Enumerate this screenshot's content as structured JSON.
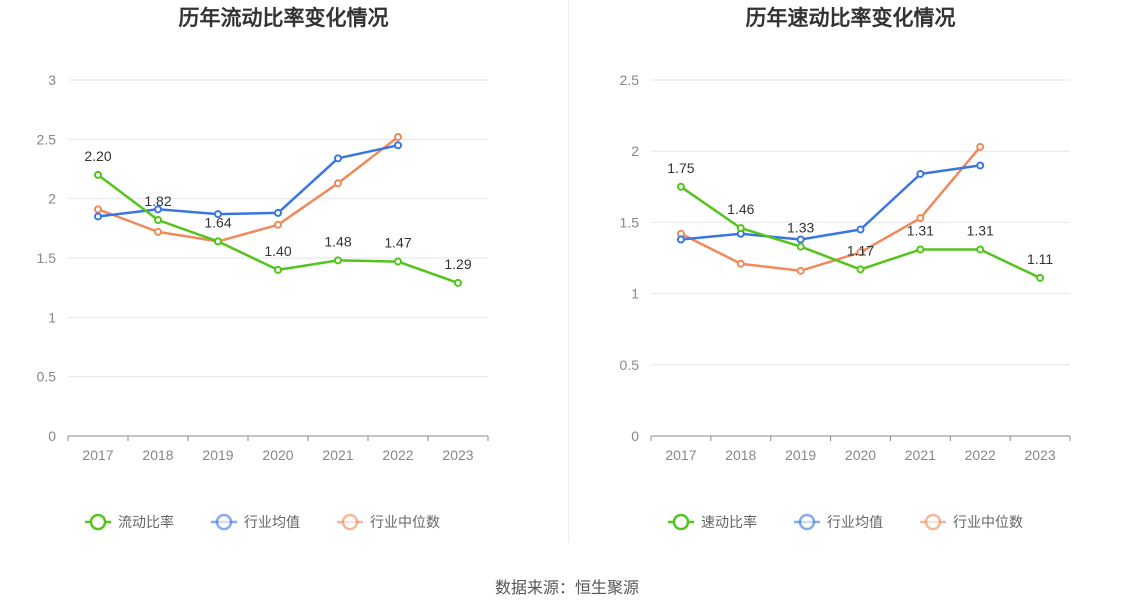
{
  "source_label": "数据来源：恒生聚源",
  "chart_data": [
    {
      "type": "line",
      "title": "历年流动比率变化情况",
      "categories": [
        "2017",
        "2018",
        "2019",
        "2020",
        "2021",
        "2022",
        "2023"
      ],
      "ylim": [
        0,
        3
      ],
      "yticks": [
        "0",
        "0.5",
        "1",
        "1.5",
        "2",
        "2.5",
        "3"
      ],
      "grid": true,
      "legend_position": "bottom",
      "labeled_series": 0,
      "series": [
        {
          "name": "流动比率",
          "color": "#52c41a",
          "values": [
            2.2,
            1.82,
            1.64,
            1.4,
            1.48,
            1.47,
            1.29
          ],
          "labels": [
            "2.20",
            "1.82",
            "1.64",
            "1.40",
            "1.48",
            "1.47",
            "1.29"
          ]
        },
        {
          "name": "行业均值",
          "color": "#3a75e0",
          "values": [
            1.85,
            1.91,
            1.87,
            1.88,
            2.34,
            2.45,
            null
          ]
        },
        {
          "name": "行业中位数",
          "color": "#f08a5d",
          "values": [
            1.91,
            1.72,
            1.64,
            1.78,
            2.13,
            2.52,
            null
          ]
        }
      ]
    },
    {
      "type": "line",
      "title": "历年速动比率变化情况",
      "categories": [
        "2017",
        "2018",
        "2019",
        "2020",
        "2021",
        "2022",
        "2023"
      ],
      "ylim": [
        0,
        2.5
      ],
      "yticks": [
        "0",
        "0.5",
        "1",
        "1.5",
        "2",
        "2.5"
      ],
      "grid": true,
      "legend_position": "bottom",
      "labeled_series": 0,
      "series": [
        {
          "name": "速动比率",
          "color": "#52c41a",
          "values": [
            1.75,
            1.46,
            1.33,
            1.17,
            1.31,
            1.31,
            1.11
          ],
          "labels": [
            "1.75",
            "1.46",
            "1.33",
            "1.17",
            "1.31",
            "1.31",
            "1.11"
          ]
        },
        {
          "name": "行业均值",
          "color": "#3a75e0",
          "values": [
            1.38,
            1.42,
            1.38,
            1.45,
            1.84,
            1.9,
            null
          ]
        },
        {
          "name": "行业中位数",
          "color": "#f08a5d",
          "values": [
            1.42,
            1.21,
            1.16,
            1.29,
            1.53,
            2.03,
            null
          ]
        }
      ]
    }
  ]
}
